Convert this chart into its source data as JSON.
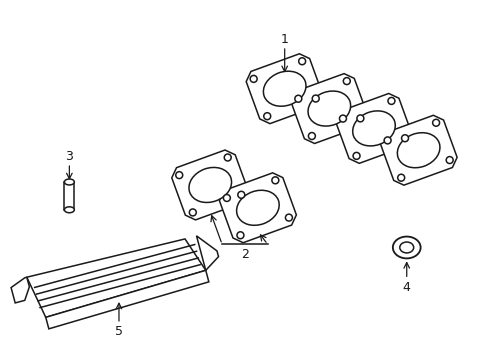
{
  "background_color": "#ffffff",
  "line_color": "#1a1a1a",
  "line_width": 1.1,
  "figsize": [
    4.89,
    3.6
  ],
  "dpi": 100
}
